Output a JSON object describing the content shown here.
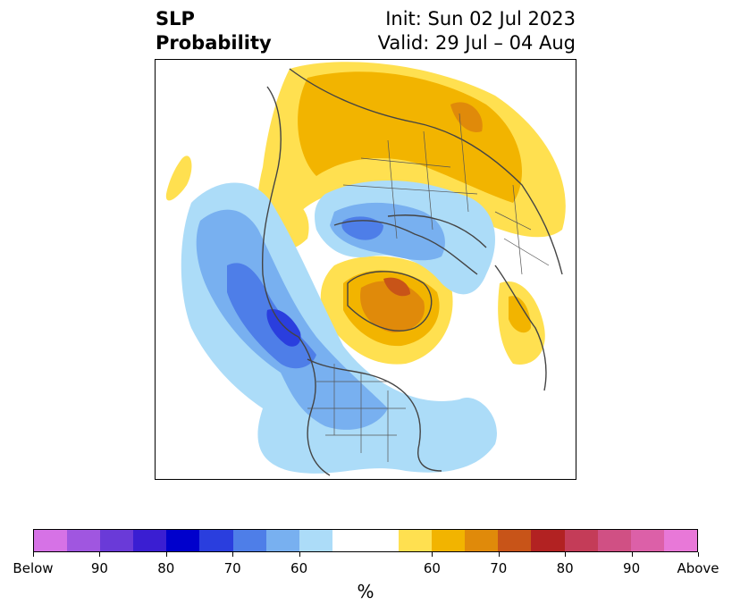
{
  "title": {
    "left_line1": "SLP",
    "left_line2": "Probability",
    "right_line1": "Init: Sun 02 Jul 2023",
    "right_line2": "Valid: 29 Jul – 04 Aug"
  },
  "colorbar": {
    "unit": "%",
    "colors": [
      "#d672e6",
      "#a056e0",
      "#6a3ad8",
      "#3a1ed2",
      "#0000cc",
      "#2a3ede",
      "#4e7ee8",
      "#78b0f0",
      "#acdcf8",
      "#ffffff",
      "#ffe050",
      "#f2b400",
      "#e08a0a",
      "#c85418",
      "#b22222",
      "#c43c58",
      "#d05084",
      "#dc60a8",
      "#e878d8"
    ],
    "tick_labels": [
      "Below",
      "90",
      "80",
      "70",
      "60",
      "60",
      "70",
      "80",
      "90",
      "Above"
    ]
  },
  "map": {
    "projection": "north polar stereographic",
    "legend_colors": {
      "below_60": "#acdcf8",
      "below_70": "#78b0f0",
      "below_80": "#4e7ee8",
      "below_90": "#2a3ede",
      "above_60": "#ffe050",
      "above_70": "#f2b400",
      "above_80": "#e08a0a",
      "above_90": "#c85418",
      "above_max": "#b22222"
    }
  }
}
